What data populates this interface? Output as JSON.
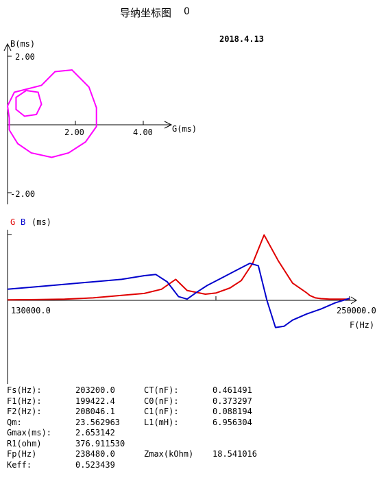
{
  "header": {
    "title": "导纳坐标图",
    "title_id": "0",
    "date": "2018.4.13"
  },
  "colors": {
    "admittance": "#ff00ff",
    "G": "#e00000",
    "B": "#0000cc",
    "axis": "#000000"
  },
  "chart_data": [
    {
      "type": "scatter",
      "ylabel": "B(ms)",
      "xlabel": "G(ms)",
      "xticks": [
        "2.00",
        "4.00"
      ],
      "yticks_top": "2.00",
      "yticks_bottom": "-2.00",
      "xlim": [
        0,
        4.8
      ],
      "ylim": [
        -2.2,
        2.2
      ],
      "series": [
        {
          "points": [
            [
              0.05,
              0.2
            ],
            [
              0.0,
              0.55
            ],
            [
              0.2,
              0.95
            ],
            [
              0.6,
              1.05
            ],
            [
              1.0,
              1.15
            ],
            [
              1.4,
              1.55
            ],
            [
              1.9,
              1.6
            ],
            [
              2.4,
              1.1
            ],
            [
              2.62,
              0.5
            ],
            [
              2.62,
              -0.05
            ],
            [
              2.3,
              -0.5
            ],
            [
              1.8,
              -0.82
            ],
            [
              1.3,
              -0.95
            ],
            [
              0.7,
              -0.82
            ],
            [
              0.3,
              -0.55
            ],
            [
              0.05,
              -0.15
            ],
            [
              0.05,
              0.2
            ]
          ]
        },
        {
          "points": [
            [
              0.55,
              1.0
            ],
            [
              0.9,
              0.95
            ],
            [
              1.0,
              0.6
            ],
            [
              0.85,
              0.3
            ],
            [
              0.5,
              0.25
            ],
            [
              0.25,
              0.45
            ],
            [
              0.25,
              0.8
            ],
            [
              0.55,
              1.0
            ]
          ]
        }
      ]
    },
    {
      "type": "line",
      "ylabel_G": "G",
      "ylabel_B": "B",
      "ylabel_unit": "(ms)",
      "xlabel": "F(Hz)",
      "xtick_left": "130000.0",
      "xtick_right": "250000.0",
      "xlim": [
        130000,
        250000
      ],
      "ylim": [
        -1.6,
        3.1
      ],
      "series": [
        {
          "name": "G",
          "x": [
            130000,
            140000,
            150000,
            160000,
            170000,
            178000,
            184000,
            189000,
            193000,
            199400,
            203200,
            208000,
            212000,
            216000,
            220000,
            225000,
            230000,
            235000,
            236000,
            238000,
            240000,
            243000,
            246000,
            250000
          ],
          "y": [
            0.02,
            0.03,
            0.05,
            0.1,
            0.2,
            0.28,
            0.45,
            0.85,
            0.4,
            0.25,
            0.3,
            0.5,
            0.8,
            1.5,
            2.65,
            1.6,
            0.7,
            0.3,
            0.2,
            0.1,
            0.07,
            0.05,
            0.05,
            0.05
          ]
        },
        {
          "name": "B",
          "x": [
            130000,
            140000,
            150000,
            160000,
            170000,
            178000,
            182000,
            186000,
            190000,
            193000,
            196000,
            200000,
            205000,
            210000,
            215000,
            218000,
            221000,
            224000,
            227000,
            230000,
            235000,
            240000,
            245000,
            250000
          ],
          "y": [
            0.45,
            0.55,
            0.65,
            0.75,
            0.85,
            1.0,
            1.05,
            0.75,
            0.15,
            0.05,
            0.3,
            0.6,
            0.9,
            1.2,
            1.5,
            1.4,
            0.0,
            -1.1,
            -1.05,
            -0.8,
            -0.55,
            -0.35,
            -0.1,
            0.08
          ]
        }
      ]
    }
  ],
  "params": {
    "rows": [
      {
        "k1": "Fs(Hz):",
        "v1": "203200.0",
        "k2": "CT(nF):",
        "v2": "0.461491"
      },
      {
        "k1": "F1(Hz):",
        "v1": "199422.4",
        "k2": "C0(nF):",
        "v2": "0.373297"
      },
      {
        "k1": "F2(Hz):",
        "v1": "208046.1",
        "k2": "C1(nF):",
        "v2": "0.088194"
      },
      {
        "k1": "Qm:",
        "v1": "23.562963",
        "k2": "L1(mH):",
        "v2": "6.956304"
      },
      {
        "k1": "Gmax(ms):",
        "v1": "2.653142",
        "k2": "",
        "v2": ""
      },
      {
        "k1": "R1(ohm)",
        "v1": "376.911530",
        "k2": "",
        "v2": ""
      },
      {
        "k1": "Fp(Hz)",
        "v1": "238480.0",
        "k2": "Zmax(kOhm)",
        "v2": "18.541016"
      },
      {
        "k1": "Keff:",
        "v1": "0.523439",
        "k2": "",
        "v2": ""
      }
    ]
  }
}
